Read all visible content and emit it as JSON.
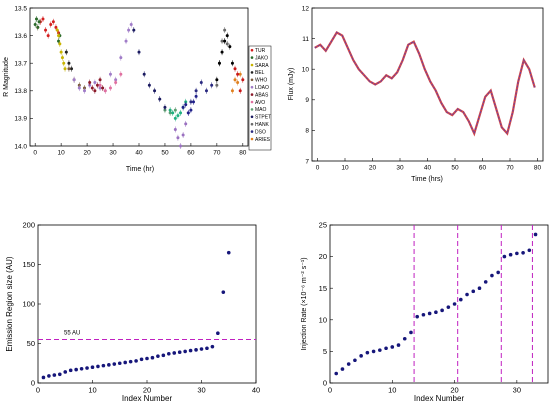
{
  "chart_data": [
    {
      "type": "scatter",
      "xlabel": "Time (hr)",
      "ylabel": "R Magnitude",
      "xlim": [
        -2,
        82
      ],
      "ylim": [
        13.5,
        14.0
      ],
      "y_inverted": true,
      "xticks": [
        0,
        10,
        20,
        30,
        40,
        50,
        60,
        70,
        80
      ],
      "yticks": [
        13.5,
        13.6,
        13.7,
        13.8,
        13.9,
        14.0
      ],
      "yticklabels": [
        "13.5",
        "13.6",
        "13.7",
        "13.8",
        "13.9",
        "14.0"
      ],
      "legend_position": "right",
      "series": [
        {
          "name": "TUR",
          "color": "#d42020",
          "x": [
            1,
            2,
            3,
            4,
            5,
            6,
            7,
            8,
            9
          ],
          "y": [
            13.57,
            13.55,
            13.54,
            13.58,
            13.6,
            13.56,
            13.55,
            13.57,
            13.59
          ]
        },
        {
          "name": "JAKO",
          "color": "#2a6a2a",
          "x": [
            0,
            0.5,
            1,
            1.5,
            9,
            9.5
          ],
          "y": [
            13.56,
            13.54,
            13.57,
            13.55,
            13.62,
            13.6
          ]
        },
        {
          "name": "SARA",
          "color": "#c8b400",
          "x": [
            8.5,
            9,
            9.5,
            10,
            10.5,
            11,
            11.5
          ],
          "y": [
            13.58,
            13.6,
            13.63,
            13.66,
            13.68,
            13.7,
            13.72
          ]
        },
        {
          "name": "BEL",
          "color": "#222222",
          "x": [
            12,
            13,
            14
          ],
          "y": [
            13.66,
            13.7,
            13.72
          ]
        },
        {
          "name": "WHO",
          "color": "#7a5a3a",
          "x": [
            13,
            15,
            17,
            19
          ],
          "y": [
            13.72,
            13.76,
            13.78,
            13.79
          ]
        },
        {
          "name": "LOAO",
          "color": "#a07cc8",
          "x": [
            15,
            17,
            19,
            21,
            23,
            25,
            27,
            29,
            31,
            33,
            35,
            36,
            37
          ],
          "y": [
            13.76,
            13.79,
            13.8,
            13.78,
            13.77,
            13.79,
            13.8,
            13.74,
            13.76,
            13.68,
            13.62,
            13.58,
            13.56
          ]
        },
        {
          "name": "ABAS",
          "color": "#8b1a2a",
          "x": [
            21,
            22,
            23,
            24,
            25,
            26
          ],
          "y": [
            13.77,
            13.79,
            13.8,
            13.78,
            13.76,
            13.79
          ]
        },
        {
          "name": "AVO",
          "color": "#e070a0",
          "x": [
            25,
            27,
            29,
            31,
            33
          ],
          "y": [
            13.78,
            13.8,
            13.79,
            13.77,
            13.74
          ]
        },
        {
          "name": "MAO",
          "color": "#5e9e72",
          "x": [
            50,
            52,
            54
          ],
          "y": [
            13.87,
            13.88,
            13.87
          ]
        },
        {
          "name": "STPET",
          "color": "#1a1a60",
          "x": [
            38,
            40,
            42,
            44,
            46,
            48,
            50
          ],
          "y": [
            13.58,
            13.66,
            13.74,
            13.78,
            13.8,
            13.83,
            13.86
          ]
        },
        {
          "name": "HANK",
          "color": "#6a6a6a",
          "x": [
            70,
            71,
            72,
            73,
            74
          ],
          "y": [
            13.78,
            13.7,
            13.62,
            13.58,
            13.63
          ]
        },
        {
          "name": "DSO",
          "color": "#2a2a80",
          "x": [
            60,
            62,
            64,
            66,
            68
          ],
          "y": [
            13.84,
            13.8,
            13.77,
            13.8,
            13.78
          ]
        },
        {
          "name": "ARIES",
          "color": "#e08020",
          "x": [
            76,
            77,
            78,
            79
          ],
          "y": [
            13.8,
            13.76,
            13.77,
            13.74
          ]
        },
        {
          "name": "",
          "color": "#20b080",
          "x": [
            52,
            53,
            54,
            55,
            56,
            57,
            58
          ],
          "y": [
            13.87,
            13.88,
            13.9,
            13.89,
            13.88,
            13.86,
            13.84
          ]
        },
        {
          "name": "",
          "color": "#9a70c0",
          "x": [
            54,
            55,
            56,
            57,
            58,
            59
          ],
          "y": [
            13.94,
            13.97,
            14.0,
            13.96,
            13.92,
            13.88
          ]
        },
        {
          "name": "",
          "color": "#20208a",
          "x": [
            57,
            58,
            59,
            60,
            61,
            62
          ],
          "y": [
            13.86,
            13.85,
            13.88,
            13.87,
            13.84,
            13.82
          ]
        },
        {
          "name": "",
          "color": "#000000",
          "x": [
            70,
            71,
            72,
            73,
            74,
            75,
            76
          ],
          "y": [
            13.76,
            13.7,
            13.66,
            13.62,
            13.6,
            13.64,
            13.7
          ]
        },
        {
          "name": "",
          "color": "#c81818",
          "x": [
            77,
            78,
            79,
            80
          ],
          "y": [
            13.72,
            13.74,
            13.8,
            13.76
          ]
        }
      ]
    },
    {
      "type": "line",
      "xlabel": "Time (hrs)",
      "ylabel": "Flux (mJy)",
      "xlim": [
        -2,
        82
      ],
      "ylim": [
        7,
        12
      ],
      "xticks": [
        0,
        10,
        20,
        30,
        40,
        50,
        60,
        70,
        80
      ],
      "yticks": [
        7,
        8,
        9,
        10,
        11,
        12
      ],
      "series": [
        {
          "color": "#6a3fa0",
          "x": [
            -1,
            1,
            3,
            5,
            7,
            9,
            11,
            13,
            15,
            17,
            19,
            21,
            23,
            25,
            27,
            29,
            31,
            33,
            35,
            37,
            39,
            41,
            43,
            45,
            47,
            49,
            51,
            53,
            55,
            57,
            59,
            61,
            63,
            65,
            67,
            69,
            71,
            73,
            75,
            77,
            79
          ],
          "y": [
            10.7,
            10.8,
            10.6,
            10.9,
            11.2,
            11.1,
            10.7,
            10.3,
            10.0,
            9.8,
            9.6,
            9.5,
            9.6,
            9.8,
            9.7,
            9.9,
            10.3,
            10.8,
            10.9,
            10.5,
            10.0,
            9.6,
            9.3,
            8.9,
            8.6,
            8.5,
            8.7,
            8.6,
            8.3,
            7.9,
            8.5,
            9.1,
            9.3,
            8.7,
            8.1,
            7.9,
            8.6,
            9.6,
            10.3,
            10.0,
            9.4
          ]
        }
      ]
    },
    {
      "type": "scatter",
      "xlabel": "Index Number",
      "ylabel": "Emission Region size (AU)",
      "xlim": [
        0,
        40
      ],
      "ylim": [
        0,
        200
      ],
      "xticks": [
        0,
        10,
        20,
        30,
        40
      ],
      "yticks": [
        0,
        50,
        100,
        150,
        200
      ],
      "annotations": [
        {
          "text": "55 AU",
          "y": 55,
          "style": "dashed",
          "color": "#c020c0"
        }
      ],
      "series": [
        {
          "color": "#16167a",
          "x": [
            1,
            2,
            3,
            4,
            5,
            6,
            7,
            8,
            9,
            10,
            11,
            12,
            13,
            14,
            15,
            16,
            17,
            18,
            19,
            20,
            21,
            22,
            23,
            24,
            25,
            26,
            27,
            28,
            29,
            30,
            31,
            32,
            33,
            34,
            35
          ],
          "y": [
            7,
            9,
            10,
            11,
            14,
            16,
            17,
            18,
            19,
            20,
            21,
            22,
            23,
            24,
            25,
            26,
            27,
            28,
            30,
            31,
            32,
            34,
            35,
            37,
            38,
            39,
            40,
            41,
            42,
            43,
            44,
            46,
            63,
            115,
            165
          ]
        }
      ]
    },
    {
      "type": "scatter",
      "xlabel": "Index Number",
      "ylabel": "Injection Rate (×10⁻⁶ m⁻² s⁻¹)",
      "xlim": [
        0,
        35
      ],
      "ylim": [
        0,
        25
      ],
      "xticks": [
        0,
        10,
        20,
        30
      ],
      "yticks": [
        0,
        5,
        10,
        15,
        20,
        25
      ],
      "annotations": [
        {
          "x": 13.5,
          "style": "dashed",
          "color": "#c020c0"
        },
        {
          "x": 20.5,
          "style": "dashed",
          "color": "#c020c0"
        },
        {
          "x": 27.5,
          "style": "dashed",
          "color": "#c020c0"
        },
        {
          "x": 32.5,
          "style": "dashed",
          "color": "#c020c0"
        }
      ],
      "series": [
        {
          "color": "#16167a",
          "x": [
            1,
            2,
            3,
            4,
            5,
            6,
            7,
            8,
            9,
            10,
            11,
            12,
            13,
            14,
            15,
            16,
            17,
            18,
            19,
            20,
            21,
            22,
            23,
            24,
            25,
            26,
            27,
            28,
            29,
            30,
            31,
            32,
            33
          ],
          "y": [
            1.5,
            2.2,
            3.0,
            3.6,
            4.3,
            4.8,
            5.0,
            5.2,
            5.5,
            5.7,
            6.0,
            7.0,
            8.0,
            10.5,
            10.8,
            11.0,
            11.2,
            11.5,
            12.0,
            12.5,
            13.2,
            14.0,
            14.5,
            15.0,
            16.0,
            17.0,
            17.5,
            20.0,
            20.3,
            20.5,
            20.6,
            21.0,
            23.5
          ]
        }
      ]
    }
  ]
}
